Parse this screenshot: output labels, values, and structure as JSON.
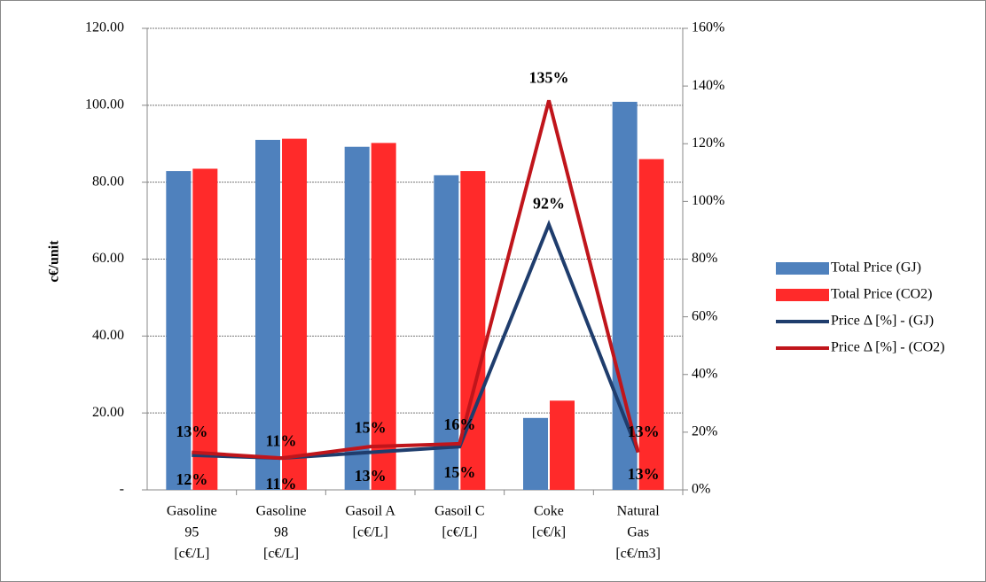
{
  "chart_data": {
    "type": "bar",
    "y_axis_label": "c€/unit",
    "categories": [
      [
        "Gasoline",
        "95",
        "[c€/L]"
      ],
      [
        "Gasoline",
        "98",
        "[c€/L]"
      ],
      [
        "Gasoil A",
        "[c€/L]"
      ],
      [
        "Gasoil C",
        "[c€/L]"
      ],
      [
        "Coke",
        "[c€/k]"
      ],
      [
        "Natural",
        "Gas",
        "[c€/m3]"
      ]
    ],
    "series": [
      {
        "name": "Total Price (GJ)",
        "type": "bar",
        "color": "#4f81bd",
        "values": [
          82.9,
          91.0,
          89.2,
          81.8,
          18.7,
          100.9
        ]
      },
      {
        "name": "Total Price (CO2)",
        "type": "bar",
        "color": "#ff2a2a",
        "values": [
          83.5,
          91.3,
          90.2,
          82.9,
          23.2,
          86.0
        ]
      },
      {
        "name": "Price Δ [%] - (GJ)",
        "type": "line",
        "axis": "y2",
        "color": "#1f3d6d",
        "values": [
          12,
          11,
          13,
          15,
          92,
          13
        ],
        "value_labels": [
          "12%",
          "11%",
          "13%",
          "15%",
          "92%",
          "13%"
        ]
      },
      {
        "name": "Price Δ [%] - (CO2)",
        "type": "line",
        "axis": "y2",
        "color": "#c0151b",
        "values": [
          13,
          11,
          15,
          16,
          135,
          13
        ],
        "value_labels": [
          "13%",
          "11%",
          "15%",
          "16%",
          "135%",
          "13%"
        ]
      }
    ],
    "ylim": [
      0,
      120
    ],
    "yticks": [
      {
        "value": 0,
        "label": "-"
      },
      {
        "value": 20,
        "label": "20.00"
      },
      {
        "value": 40,
        "label": "40.00"
      },
      {
        "value": 60,
        "label": "60.00"
      },
      {
        "value": 80,
        "label": "80.00"
      },
      {
        "value": 100,
        "label": "100.00"
      },
      {
        "value": 120,
        "label": "120.00"
      }
    ],
    "y2lim": [
      0,
      160
    ],
    "y2ticks": [
      {
        "value": 0,
        "label": "0%"
      },
      {
        "value": 20,
        "label": "20%"
      },
      {
        "value": 40,
        "label": "40%"
      },
      {
        "value": 60,
        "label": "60%"
      },
      {
        "value": 80,
        "label": "80%"
      },
      {
        "value": 100,
        "label": "100%"
      },
      {
        "value": 120,
        "label": "120%"
      },
      {
        "value": 140,
        "label": "140%"
      },
      {
        "value": 160,
        "label": "160%"
      }
    ],
    "grid": true,
    "legend": "right"
  }
}
